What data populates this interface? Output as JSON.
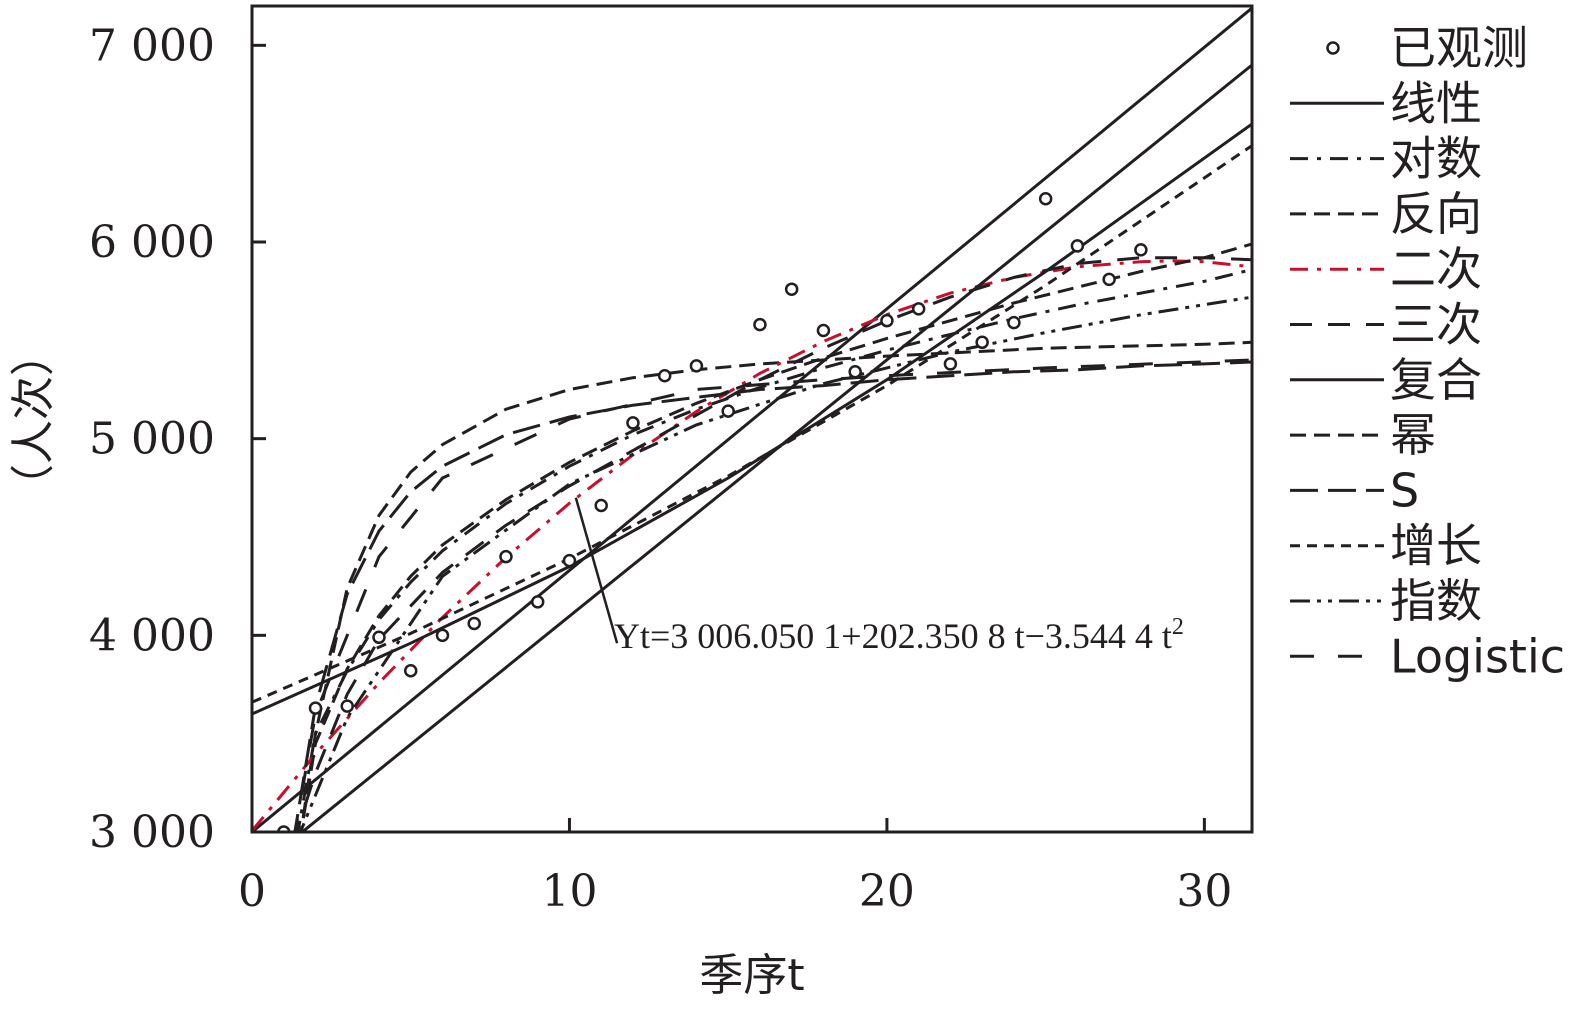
{
  "chart_data": {
    "type": "line",
    "title": "",
    "xlabel": "季序t",
    "ylabel": "（人次）",
    "xlim": [
      0,
      31.5
    ],
    "ylim": [
      3000,
      7200
    ],
    "x_ticks": [
      0,
      10,
      20,
      30
    ],
    "x_tick_labels": [
      "0",
      "10",
      "20",
      "30"
    ],
    "y_ticks": [
      3000,
      4000,
      5000,
      6000,
      7000
    ],
    "y_tick_labels": [
      "3 000",
      "4 000",
      "5 000",
      "6 000",
      "7 000"
    ],
    "grid": false,
    "legend_position": "right",
    "observed": {
      "name": "已观测",
      "x": [
        1,
        2,
        3,
        4,
        5,
        6,
        7,
        8,
        9,
        10,
        11,
        12,
        13,
        14,
        15,
        16,
        17,
        18,
        19,
        20,
        21,
        22,
        23,
        24,
        25,
        26,
        27,
        28
      ],
      "y": [
        3000,
        3630,
        3640,
        3990,
        3820,
        4000,
        4060,
        4400,
        4170,
        4380,
        4660,
        5080,
        5320,
        5370,
        5140,
        5580,
        5760,
        5550,
        5340,
        5600,
        5660,
        5380,
        5490,
        5590,
        6220,
        5980,
        5810,
        5960
      ]
    },
    "series": [
      {
        "name": "线性",
        "style": "solid",
        "color": "#231f20",
        "x": [
          0,
          31.5
        ],
        "y": [
          3000,
          7190
        ]
      },
      {
        "name": "对数",
        "style": "dashdot",
        "color": "#231f20",
        "x": [
          1.4,
          2,
          3,
          4,
          5,
          6,
          8,
          10,
          12,
          14,
          16,
          18,
          20,
          22,
          24,
          26,
          28,
          30,
          31.5
        ],
        "y": [
          2960,
          3500,
          3820,
          4080,
          4270,
          4430,
          4670,
          4860,
          5020,
          5150,
          5260,
          5360,
          5450,
          5530,
          5610,
          5680,
          5740,
          5800,
          5860
        ]
      },
      {
        "name": "反向",
        "style": "dashed",
        "color": "#231f20",
        "x": [
          1.5,
          2,
          3,
          4,
          5,
          6,
          8,
          10,
          12,
          14,
          16,
          18,
          20,
          25,
          30,
          31.5
        ],
        "y": [
          2950,
          3500,
          4240,
          4610,
          4830,
          4970,
          5150,
          5250,
          5310,
          5350,
          5380,
          5400,
          5420,
          5460,
          5480,
          5490
        ]
      },
      {
        "name": "二次",
        "style": "dashdot",
        "color": "#c8102e",
        "x": [
          0,
          2,
          4,
          6,
          8,
          10,
          12,
          14,
          16,
          18,
          20,
          22,
          24,
          26,
          28,
          29,
          30,
          31.5
        ],
        "y": [
          3006,
          3396,
          3758,
          4091,
          4396,
          4672,
          4918,
          5138,
          5332,
          5494,
          5631,
          5740,
          5820,
          5874,
          5900,
          5904,
          5900,
          5874
        ]
      },
      {
        "name": "三次",
        "style": "dashed-long",
        "color": "#231f20",
        "x": [
          1.3,
          2,
          3,
          4,
          6,
          8,
          10,
          12,
          14,
          16,
          18,
          20,
          22,
          24,
          26,
          28,
          30,
          31.5
        ],
        "y": [
          2950,
          3300,
          3700,
          3980,
          4320,
          4560,
          4760,
          4940,
          5120,
          5300,
          5460,
          5600,
          5720,
          5820,
          5890,
          5920,
          5920,
          5910
        ]
      },
      {
        "name": "复合",
        "style": "solid",
        "color": "#231f20",
        "x": [
          0,
          5,
          10,
          15,
          20,
          25,
          31.5
        ],
        "y": [
          3600,
          3960,
          4350,
          4800,
          5300,
          5850,
          6600
        ]
      },
      {
        "name": "幂",
        "style": "dashed",
        "color": "#231f20",
        "x": [
          1.5,
          2,
          3,
          4,
          5,
          6,
          8,
          10,
          12,
          14,
          16,
          18,
          20,
          22,
          24,
          26,
          28,
          30,
          31.5
        ],
        "y": [
          2950,
          3450,
          3830,
          4100,
          4300,
          4460,
          4690,
          4880,
          5040,
          5180,
          5300,
          5410,
          5510,
          5600,
          5690,
          5770,
          5850,
          5920,
          5990
        ]
      },
      {
        "name": "S",
        "style": "dash-long",
        "color": "#231f20",
        "x": [
          1.3,
          2,
          3,
          4,
          5,
          6,
          8,
          10,
          12,
          14,
          16,
          18,
          20,
          22,
          24,
          26,
          28,
          30,
          31.5
        ],
        "y": [
          2950,
          3640,
          4210,
          4530,
          4730,
          4860,
          5020,
          5110,
          5170,
          5210,
          5250,
          5270,
          5300,
          5320,
          5340,
          5350,
          5370,
          5380,
          5390
        ]
      },
      {
        "name": "增长",
        "style": "dashed-short",
        "color": "#231f20",
        "x": [
          0,
          5,
          10,
          15,
          20,
          25,
          31.5
        ],
        "y": [
          3660,
          4010,
          4390,
          4810,
          5270,
          5780,
          6490
        ]
      },
      {
        "name": "指数",
        "style": "dash-dotdot",
        "color": "#231f20",
        "x": [
          1.4,
          3,
          6,
          10,
          14,
          18,
          20,
          22,
          25,
          28,
          31.5
        ],
        "y": [
          2950,
          3580,
          4300,
          4770,
          5070,
          5280,
          5360,
          5440,
          5540,
          5630,
          5720
        ]
      },
      {
        "name": "Logistic",
        "style": "dash-gap",
        "color": "#231f20",
        "x": [
          1.3,
          2,
          4,
          6,
          10,
          14,
          18,
          20,
          25,
          31.5
        ],
        "y": [
          2950,
          3600,
          4400,
          4800,
          5100,
          5250,
          5300,
          5320,
          5360,
          5400
        ]
      }
    ],
    "steep_line": {
      "x": [
        1.2,
        31.5
      ],
      "y": [
        2950,
        6900
      ]
    },
    "annotation": {
      "text": "Yt=3 006.050 1+202.350 8 t−3.544 4 t",
      "superscript": "2",
      "point": {
        "x": 10.2,
        "y": 4700
      },
      "label_anchor": {
        "x": 11.5,
        "y": 3960
      }
    }
  }
}
